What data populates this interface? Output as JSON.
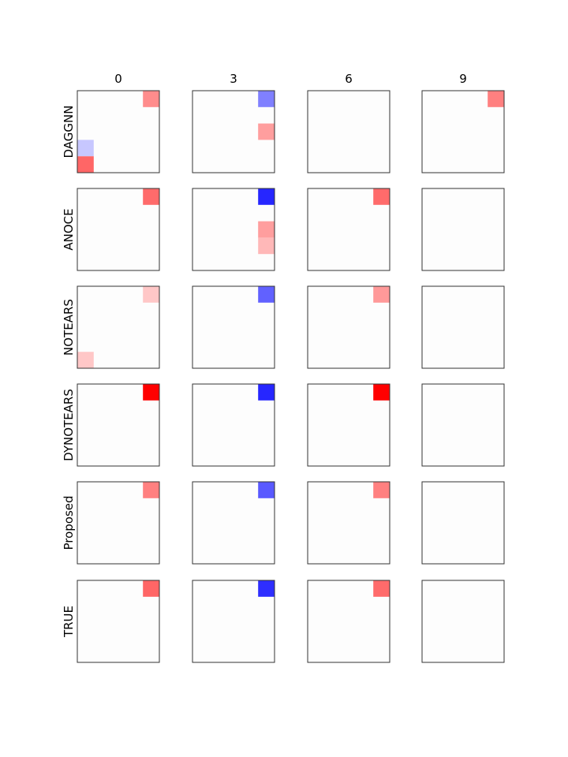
{
  "chart_data": {
    "type": "heatmap",
    "title": "",
    "columns": [
      "0",
      "3",
      "6",
      "9"
    ],
    "rows": [
      "DAGGNN",
      "ANOCE",
      "NOTEARS",
      "DYNOTEARS",
      "Proposed",
      "TRUE"
    ],
    "grid_size": 5,
    "value_range": [
      -1,
      1
    ],
    "colormap": {
      "negative": "#0000ff",
      "zero": "#ffffff",
      "positive": "#ff0000"
    },
    "cells": [
      [
        [
          {
            "row": 0,
            "col": 4,
            "value": 0.45
          },
          {
            "row": 3,
            "col": 0,
            "value": -0.22
          },
          {
            "row": 4,
            "col": 0,
            "value": 0.6
          }
        ],
        [
          {
            "row": 0,
            "col": 4,
            "value": -0.5
          },
          {
            "row": 2,
            "col": 4,
            "value": 0.38
          }
        ],
        [],
        [
          {
            "row": 0,
            "col": 4,
            "value": 0.5
          }
        ]
      ],
      [
        [
          {
            "row": 0,
            "col": 4,
            "value": 0.58
          }
        ],
        [
          {
            "row": 0,
            "col": 4,
            "value": -0.85
          },
          {
            "row": 2,
            "col": 4,
            "value": 0.38
          },
          {
            "row": 3,
            "col": 4,
            "value": 0.28
          }
        ],
        [
          {
            "row": 0,
            "col": 4,
            "value": 0.58
          }
        ],
        []
      ],
      [
        [
          {
            "row": 0,
            "col": 4,
            "value": 0.22
          },
          {
            "row": 4,
            "col": 0,
            "value": 0.22
          }
        ],
        [
          {
            "row": 0,
            "col": 4,
            "value": -0.62
          }
        ],
        [
          {
            "row": 0,
            "col": 4,
            "value": 0.4
          }
        ],
        []
      ],
      [
        [
          {
            "row": 0,
            "col": 4,
            "value": 1.0
          }
        ],
        [
          {
            "row": 0,
            "col": 4,
            "value": -0.85
          }
        ],
        [
          {
            "row": 0,
            "col": 4,
            "value": 1.0
          }
        ],
        []
      ],
      [
        [
          {
            "row": 0,
            "col": 4,
            "value": 0.5
          }
        ],
        [
          {
            "row": 0,
            "col": 4,
            "value": -0.65
          }
        ],
        [
          {
            "row": 0,
            "col": 4,
            "value": 0.5
          }
        ],
        []
      ],
      [
        [
          {
            "row": 0,
            "col": 4,
            "value": 0.6
          }
        ],
        [
          {
            "row": 0,
            "col": 4,
            "value": -0.82
          }
        ],
        [
          {
            "row": 0,
            "col": 4,
            "value": 0.58
          }
        ],
        []
      ]
    ]
  }
}
